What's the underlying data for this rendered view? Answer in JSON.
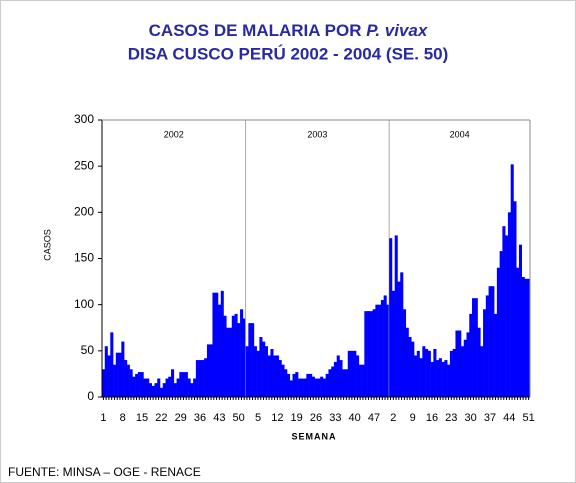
{
  "chart_data": {
    "type": "bar",
    "title_line1": "CASOS DE MALARIA POR",
    "title_italic": "P. vivax",
    "title_line2": "DISA CUSCO PERÚ 2002 - 2004 (SE. 50)",
    "x_label": "SEMANA",
    "y_label": "CASOS",
    "source": "FUENTE: MINSA – OGE - RENACE",
    "ylim": [
      0,
      300
    ],
    "yticks": [
      0,
      50,
      100,
      150,
      200,
      250,
      300
    ],
    "series": [
      {
        "name": "2002",
        "color": "#0000ff",
        "categories": [
          "1",
          null,
          null,
          null,
          null,
          null,
          null,
          "8",
          null,
          null,
          null,
          null,
          null,
          null,
          "15",
          null,
          null,
          null,
          null,
          null,
          null,
          "22",
          null,
          null,
          null,
          null,
          null,
          null,
          "29",
          null,
          null,
          null,
          null,
          null,
          null,
          "36",
          null,
          null,
          null,
          null,
          null,
          null,
          "43",
          null,
          null,
          null,
          null,
          null,
          null,
          "50",
          null,
          null
        ],
        "values": [
          30,
          55,
          45,
          70,
          35,
          48,
          48,
          60,
          40,
          35,
          30,
          22,
          25,
          27,
          27,
          20,
          20,
          15,
          12,
          15,
          20,
          10,
          15,
          20,
          22,
          30,
          15,
          20,
          27,
          27,
          27,
          20,
          15,
          20,
          40,
          40,
          40,
          42,
          57,
          57,
          113,
          113,
          100,
          115,
          88,
          75,
          75,
          88,
          90,
          80,
          95,
          85
        ]
      },
      {
        "name": "2003",
        "color": "#0000ff",
        "categories": [
          null,
          null,
          null,
          null,
          "5",
          null,
          null,
          null,
          null,
          null,
          null,
          "12",
          null,
          null,
          null,
          null,
          null,
          null,
          "19",
          null,
          null,
          null,
          null,
          null,
          null,
          "26",
          null,
          null,
          null,
          null,
          null,
          null,
          "33",
          null,
          null,
          null,
          null,
          null,
          null,
          "40",
          null,
          null,
          null,
          null,
          null,
          null,
          "47",
          null,
          null,
          null,
          null,
          null
        ],
        "values": [
          55,
          80,
          80,
          55,
          50,
          65,
          60,
          55,
          45,
          52,
          45,
          45,
          40,
          35,
          30,
          25,
          18,
          25,
          27,
          20,
          20,
          20,
          25,
          25,
          22,
          20,
          20,
          22,
          20,
          25,
          30,
          33,
          38,
          45,
          40,
          30,
          30,
          50,
          50,
          50,
          45,
          35,
          35,
          93,
          93,
          93,
          95,
          100,
          100,
          105,
          110,
          100
        ]
      },
      {
        "name": "2004",
        "color": "#0000ff",
        "categories": [
          null,
          "2",
          null,
          null,
          null,
          null,
          null,
          null,
          "9",
          null,
          null,
          null,
          null,
          null,
          null,
          "16",
          null,
          null,
          null,
          null,
          null,
          null,
          "23",
          null,
          null,
          null,
          null,
          null,
          null,
          "30",
          null,
          null,
          null,
          null,
          null,
          null,
          "37",
          null,
          null,
          null,
          null,
          null,
          null,
          "44",
          null,
          null,
          null,
          null,
          null,
          null,
          "51"
        ],
        "values": [
          172,
          115,
          175,
          125,
          135,
          95,
          75,
          65,
          60,
          45,
          50,
          42,
          55,
          52,
          50,
          38,
          52,
          40,
          42,
          38,
          40,
          35,
          50,
          52,
          72,
          72,
          55,
          62,
          70,
          90,
          107,
          107,
          75,
          55,
          95,
          110,
          120,
          120,
          90,
          140,
          158,
          185,
          175,
          200,
          252,
          212,
          140,
          165,
          130,
          128,
          128
        ]
      }
    ]
  }
}
